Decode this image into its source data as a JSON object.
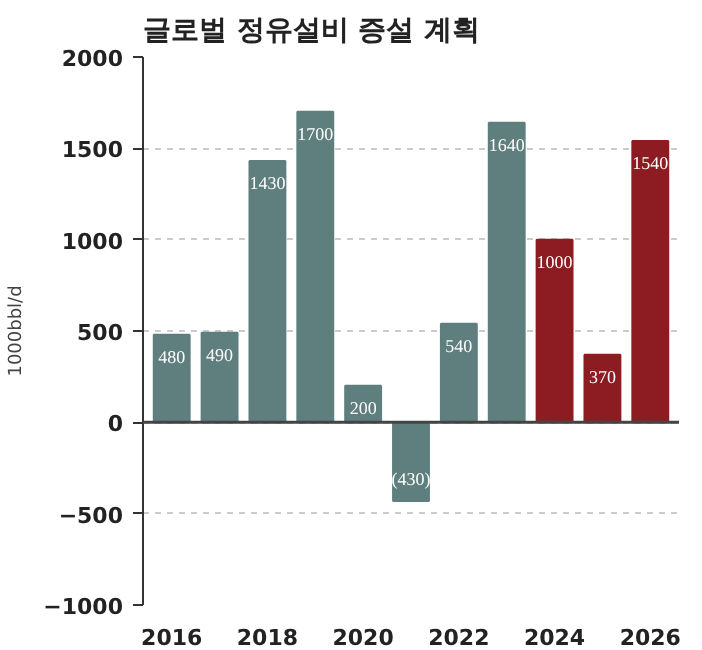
{
  "chart_data": {
    "type": "bar",
    "title": "글로벌 정유설비 증설 계획",
    "ylabel": "1000bbl/d",
    "x": [
      2016,
      2017,
      2018,
      2019,
      2020,
      2021,
      2022,
      2023,
      2024,
      2025,
      2026
    ],
    "values": [
      480,
      490,
      1430,
      1700,
      200,
      -430,
      540,
      1640,
      1000,
      370,
      1540
    ],
    "colors": [
      "#5f7f7e",
      "#5f7f7e",
      "#5f7f7e",
      "#5f7f7e",
      "#5f7f7e",
      "#5f7f7e",
      "#5f7f7e",
      "#5f7f7e",
      "#8c1c22",
      "#8c1c22",
      "#8c1c22"
    ],
    "value_labels": [
      "480",
      "490",
      "1430",
      "1700",
      "200",
      "(430)",
      "540",
      "1640",
      "1000",
      "370",
      "1540"
    ],
    "xlim": [
      2015.4,
      2026.6
    ],
    "xticks": [
      2016,
      2018,
      2020,
      2022,
      2024,
      2026
    ],
    "ylim": [
      -1000,
      2000
    ],
    "yticks": [
      -1000,
      -500,
      0,
      500,
      1000,
      1500,
      2000
    ],
    "grid": "y"
  }
}
